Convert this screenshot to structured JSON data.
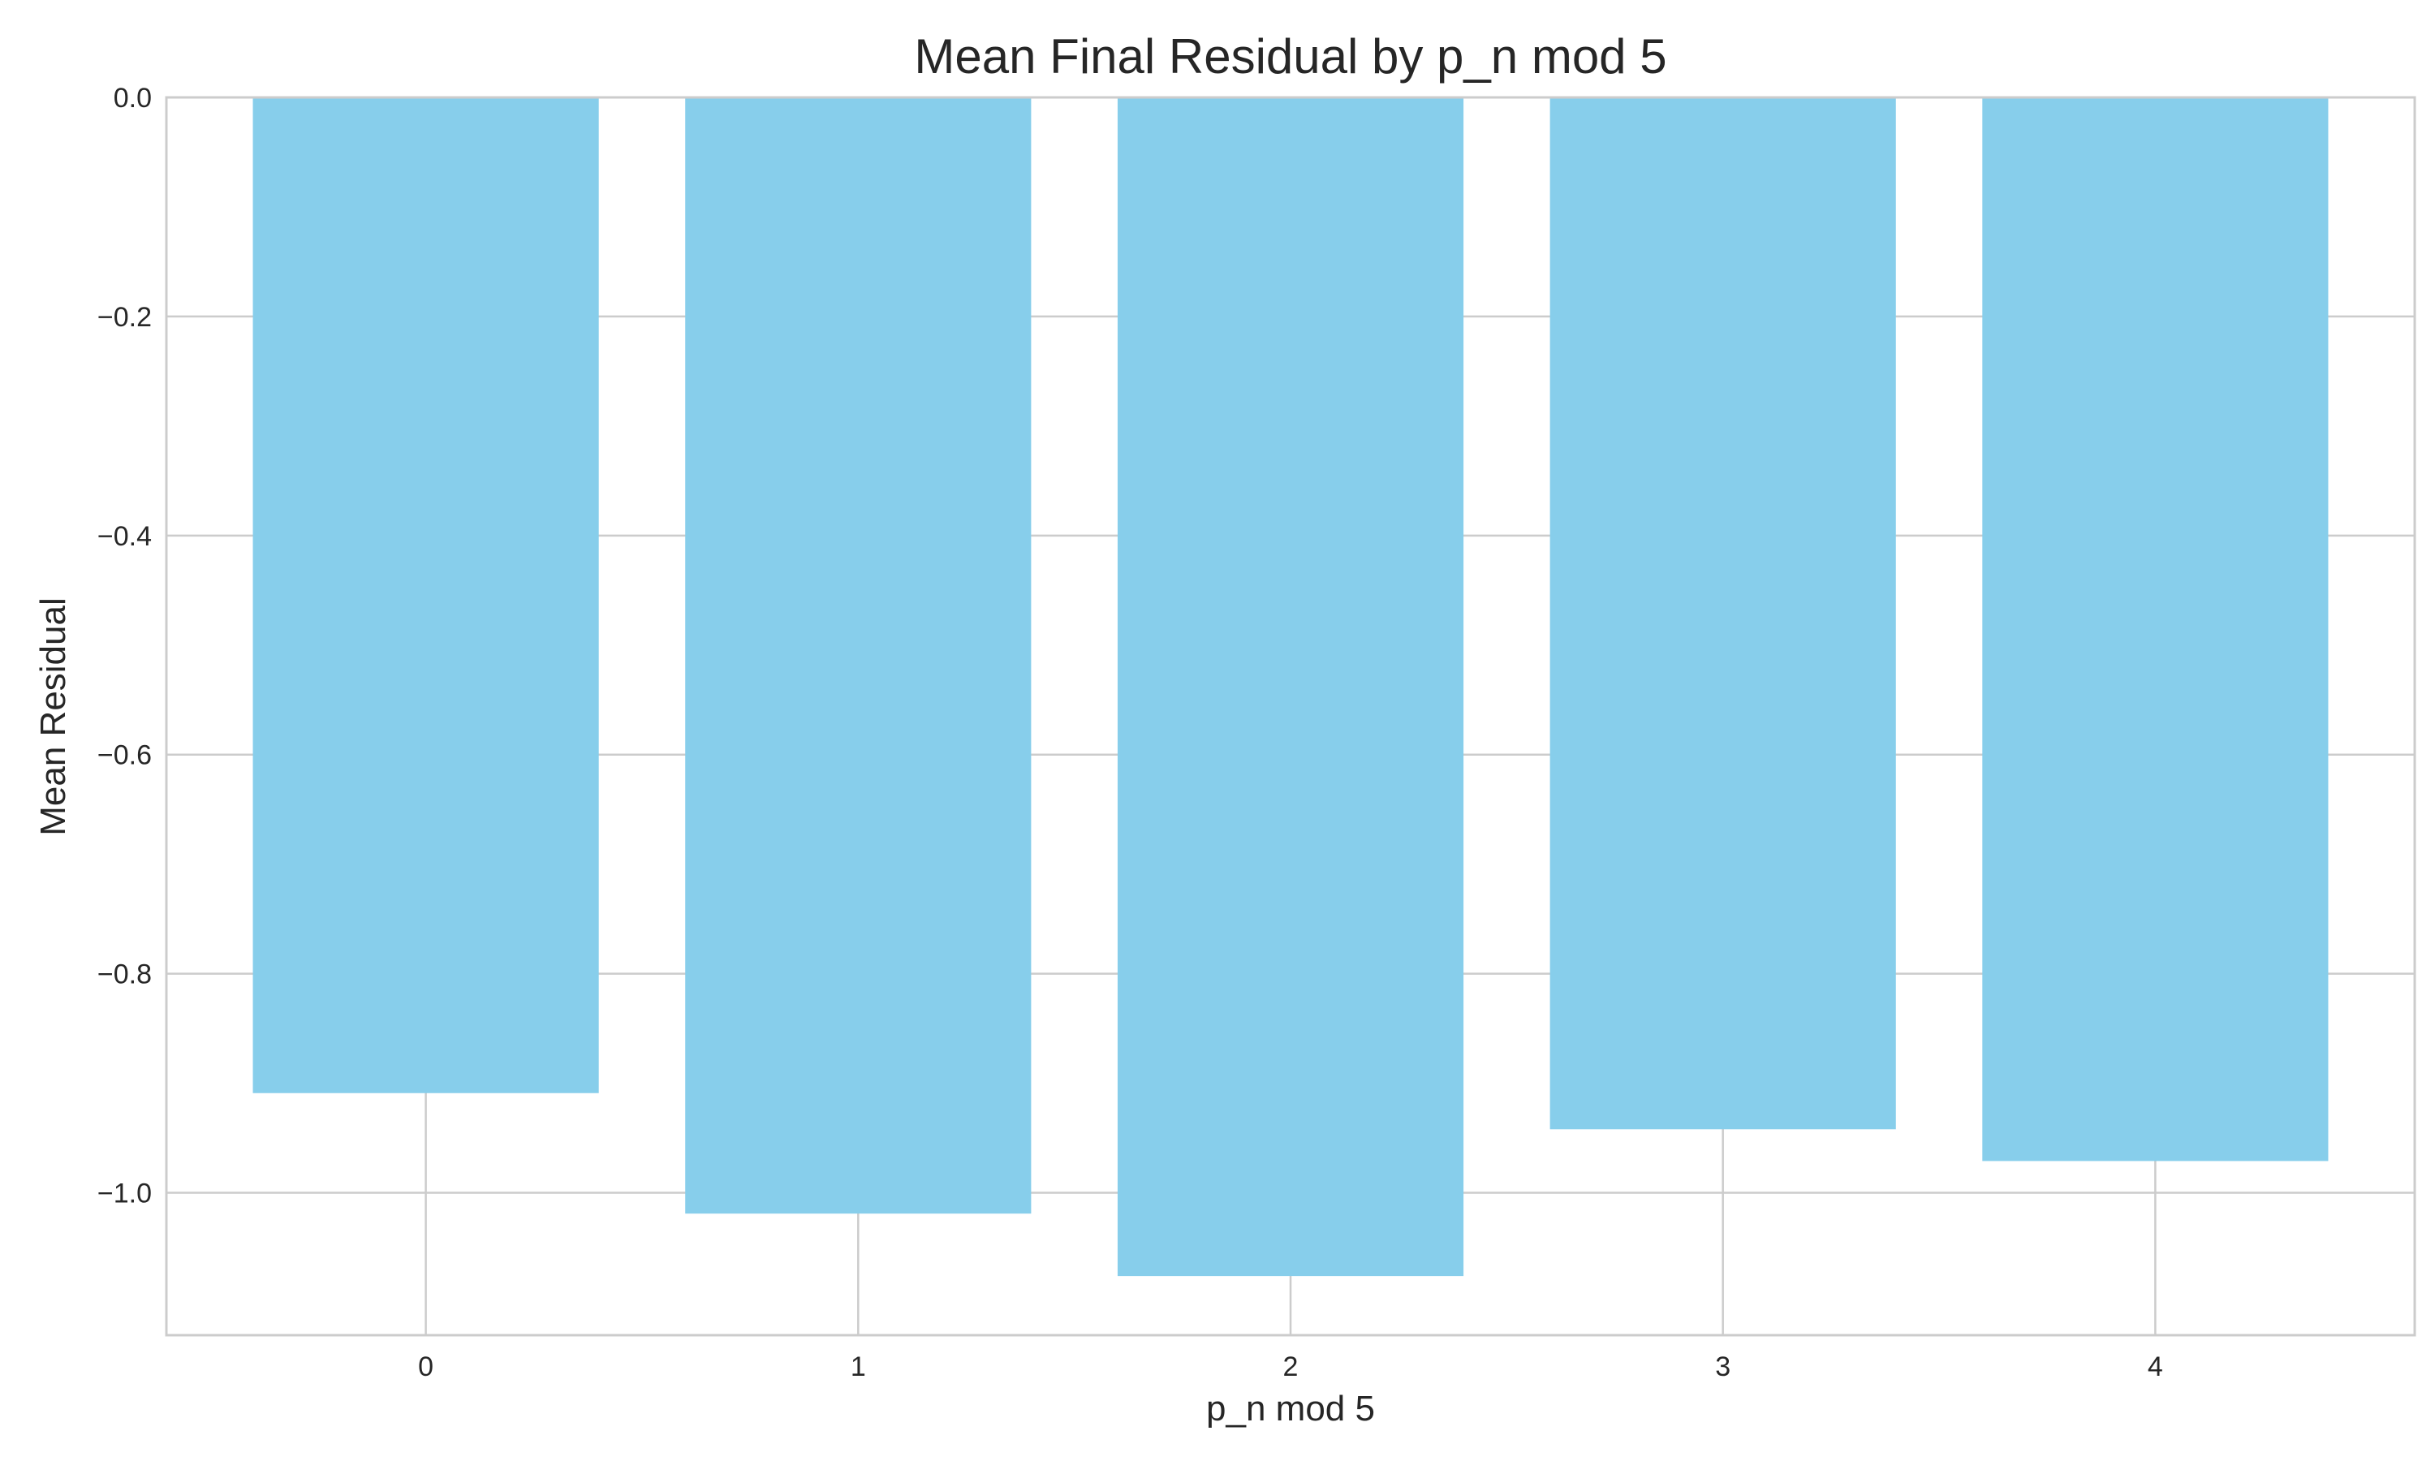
{
  "chart_data": {
    "type": "bar",
    "title": "Mean Final Residual by p_n mod 5",
    "xlabel": "p_n mod 5",
    "ylabel": "Mean Residual",
    "categories": [
      "0",
      "1",
      "2",
      "3",
      "4"
    ],
    "values": [
      -0.909,
      -1.019,
      -1.076,
      -0.942,
      -0.971
    ],
    "ylim": [
      -1.13,
      0.0
    ],
    "yticks": [
      0.0,
      -0.2,
      -0.4,
      -0.6,
      -0.8,
      -1.0
    ],
    "ytick_labels": [
      "0.0",
      "−0.2",
      "−0.4",
      "−0.6",
      "−0.8",
      "−1.0"
    ],
    "bar_color": "#87ceeb",
    "grid": true,
    "legend": false
  }
}
